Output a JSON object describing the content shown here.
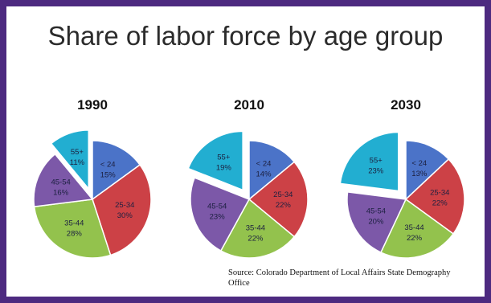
{
  "title": "Share of labor force by age group",
  "source": "Source: Colorado Department of Local Affairs State Demography Office",
  "colors": {
    "frame": "#4d2a80",
    "under24": "#4b73c8",
    "25-34": "#cc4146",
    "35-44": "#93c24d",
    "45-54": "#7c58a8",
    "55plus": "#22aed1"
  },
  "chart_data": [
    {
      "type": "pie",
      "title": "1990",
      "slices": [
        {
          "label": "< 24",
          "value": 15,
          "text": "15%",
          "color": "#4b73c8"
        },
        {
          "label": "25-34",
          "value": 30,
          "text": "30%",
          "color": "#cc4146"
        },
        {
          "label": "35-44",
          "value": 28,
          "text": "28%",
          "color": "#93c24d"
        },
        {
          "label": "45-54",
          "value": 16,
          "text": "16%",
          "color": "#7c58a8"
        },
        {
          "label": "55+",
          "value": 11,
          "text": "11%",
          "color": "#22aed1",
          "exploded": true
        }
      ]
    },
    {
      "type": "pie",
      "title": "2010",
      "slices": [
        {
          "label": "< 24",
          "value": 14,
          "text": "14%",
          "color": "#4b73c8"
        },
        {
          "label": "25-34",
          "value": 22,
          "text": "22%",
          "color": "#cc4146"
        },
        {
          "label": "35-44",
          "value": 22,
          "text": "22%",
          "color": "#93c24d"
        },
        {
          "label": "45-54",
          "value": 23,
          "text": "23%",
          "color": "#7c58a8"
        },
        {
          "label": "55+",
          "value": 19,
          "text": "19%",
          "color": "#22aed1",
          "exploded": true
        }
      ]
    },
    {
      "type": "pie",
      "title": "2030",
      "slices": [
        {
          "label": "< 24",
          "value": 13,
          "text": "13%",
          "color": "#4b73c8"
        },
        {
          "label": "25-34",
          "value": 22,
          "text": "22%",
          "color": "#cc4146"
        },
        {
          "label": "35-44",
          "value": 22,
          "text": "22%",
          "color": "#93c24d"
        },
        {
          "label": "45-54",
          "value": 20,
          "text": "20%",
          "color": "#7c58a8"
        },
        {
          "label": "55+",
          "value": 23,
          "text": "23%",
          "color": "#22aed1",
          "exploded": true
        }
      ]
    }
  ]
}
